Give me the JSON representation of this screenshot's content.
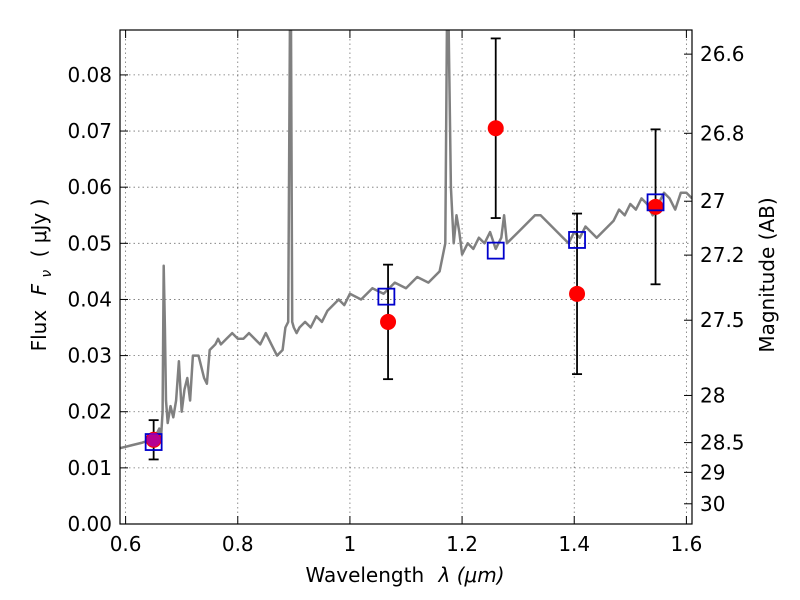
{
  "chart_data": {
    "type": "scatter",
    "xlabel_text": "Wavelength",
    "xlabel_math": "λ (μm)",
    "ylabel_text": "Flux",
    "ylabel_math": "F",
    "ylabel_sub": "ν",
    "ylabel_unit": "( μJy )",
    "y2label": "Magnitude (AB)",
    "xlim": [
      0.59,
      1.61
    ],
    "ylim": [
      0.0,
      0.088
    ],
    "grid": true,
    "x_ticks": [
      {
        "value": 0.6,
        "label": "0.6"
      },
      {
        "value": 0.8,
        "label": "0.8"
      },
      {
        "value": 1.0,
        "label": "1"
      },
      {
        "value": 1.2,
        "label": "1.2"
      },
      {
        "value": 1.4,
        "label": "1.4"
      },
      {
        "value": 1.6,
        "label": "1.6"
      }
    ],
    "y_ticks": [
      {
        "value": 0.0,
        "label": "0.00"
      },
      {
        "value": 0.01,
        "label": "0.01"
      },
      {
        "value": 0.02,
        "label": "0.02"
      },
      {
        "value": 0.03,
        "label": "0.03"
      },
      {
        "value": 0.04,
        "label": "0.04"
      },
      {
        "value": 0.05,
        "label": "0.05"
      },
      {
        "value": 0.06,
        "label": "0.06"
      },
      {
        "value": 0.07,
        "label": "0.07"
      },
      {
        "value": 0.08,
        "label": "0.08"
      }
    ],
    "y2_ticks": [
      {
        "flux": 0.0837,
        "label": "26.6"
      },
      {
        "flux": 0.0696,
        "label": "26.8"
      },
      {
        "flux": 0.0575,
        "label": "27"
      },
      {
        "flux": 0.0479,
        "label": "27.2"
      },
      {
        "flux": 0.0363,
        "label": "27.5"
      },
      {
        "flux": 0.0229,
        "label": "28"
      },
      {
        "flux": 0.0145,
        "label": "28.5"
      },
      {
        "flux": 0.0092,
        "label": "29"
      },
      {
        "flux": 0.0036,
        "label": "30"
      }
    ],
    "sed_model": {
      "color": "#808080",
      "x": [
        0.59,
        0.61,
        0.63,
        0.645,
        0.655,
        0.66,
        0.663,
        0.666,
        0.668,
        0.67,
        0.672,
        0.675,
        0.68,
        0.685,
        0.69,
        0.695,
        0.7,
        0.705,
        0.71,
        0.715,
        0.72,
        0.73,
        0.74,
        0.745,
        0.75,
        0.76,
        0.765,
        0.77,
        0.78,
        0.79,
        0.8,
        0.81,
        0.82,
        0.83,
        0.84,
        0.85,
        0.86,
        0.87,
        0.88,
        0.885,
        0.89,
        0.893,
        0.895,
        0.897,
        0.9,
        0.905,
        0.91,
        0.92,
        0.93,
        0.94,
        0.95,
        0.96,
        0.97,
        0.98,
        0.99,
        1.0,
        1.02,
        1.04,
        1.06,
        1.08,
        1.1,
        1.12,
        1.14,
        1.16,
        1.17,
        1.173,
        1.176,
        1.18,
        1.185,
        1.19,
        1.195,
        1.2,
        1.21,
        1.22,
        1.23,
        1.24,
        1.25,
        1.26,
        1.27,
        1.275,
        1.28,
        1.29,
        1.3,
        1.31,
        1.32,
        1.33,
        1.34,
        1.35,
        1.36,
        1.37,
        1.38,
        1.39,
        1.4,
        1.41,
        1.42,
        1.43,
        1.44,
        1.45,
        1.46,
        1.47,
        1.48,
        1.49,
        1.5,
        1.51,
        1.52,
        1.53,
        1.54,
        1.55,
        1.56,
        1.57,
        1.58,
        1.59,
        1.6,
        1.61
      ],
      "y": [
        0.0135,
        0.014,
        0.0145,
        0.015,
        0.016,
        0.017,
        0.015,
        0.02,
        0.046,
        0.035,
        0.022,
        0.018,
        0.021,
        0.019,
        0.022,
        0.029,
        0.02,
        0.024,
        0.026,
        0.022,
        0.03,
        0.03,
        0.026,
        0.025,
        0.031,
        0.032,
        0.033,
        0.032,
        0.033,
        0.034,
        0.033,
        0.033,
        0.034,
        0.033,
        0.032,
        0.034,
        0.032,
        0.03,
        0.031,
        0.035,
        0.036,
        0.088,
        0.089,
        0.036,
        0.035,
        0.034,
        0.035,
        0.036,
        0.035,
        0.037,
        0.036,
        0.038,
        0.039,
        0.04,
        0.039,
        0.041,
        0.04,
        0.042,
        0.041,
        0.043,
        0.042,
        0.044,
        0.043,
        0.045,
        0.05,
        0.088,
        0.089,
        0.06,
        0.05,
        0.055,
        0.052,
        0.048,
        0.05,
        0.049,
        0.051,
        0.05,
        0.052,
        0.049,
        0.051,
        0.055,
        0.05,
        0.051,
        0.052,
        0.053,
        0.054,
        0.055,
        0.055,
        0.054,
        0.053,
        0.052,
        0.051,
        0.05,
        0.052,
        0.051,
        0.053,
        0.052,
        0.051,
        0.052,
        0.053,
        0.054,
        0.056,
        0.055,
        0.057,
        0.056,
        0.058,
        0.057,
        0.055,
        0.057,
        0.059,
        0.058,
        0.056,
        0.059,
        0.059,
        0.058
      ]
    },
    "model_points": {
      "color": "#0000cc",
      "x": [
        0.65,
        1.065,
        1.26,
        1.405,
        1.545
      ],
      "y": [
        0.0146,
        0.0405,
        0.0487,
        0.0506,
        0.0573
      ]
    },
    "observed": {
      "color": "#ff0000",
      "x": [
        0.65,
        1.068,
        1.26,
        1.405,
        1.545
      ],
      "y": [
        0.015,
        0.036,
        0.0705,
        0.041,
        0.0565
      ],
      "yerr": [
        0.0035,
        0.0102,
        0.016,
        0.0143,
        0.0138
      ]
    }
  }
}
